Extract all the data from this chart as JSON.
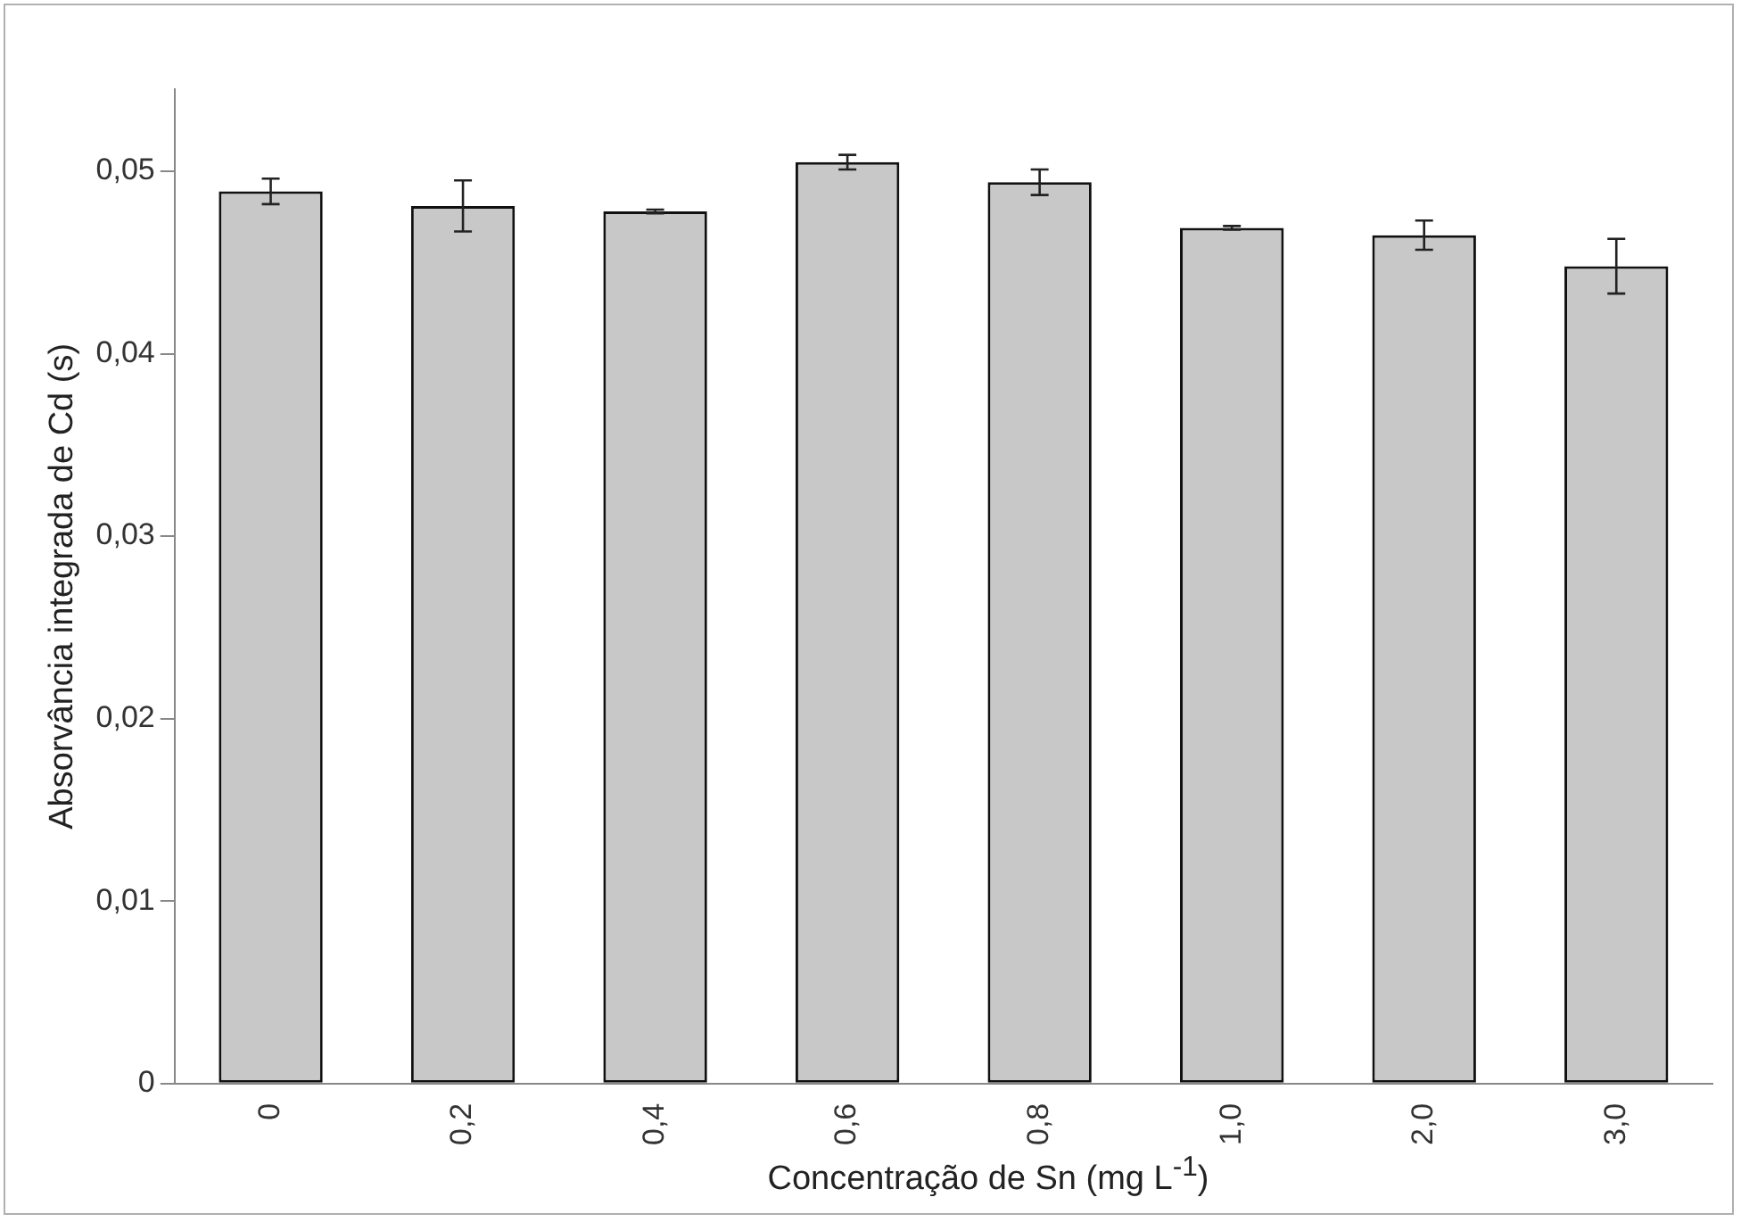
{
  "chart_data": {
    "type": "bar",
    "xlabel": "Concentração de Sn (mg L$^{-1}$)",
    "ylabel": "Absorvância integrada de Cd (s)",
    "categories": [
      "0",
      "0,2",
      "0,4",
      "0,6",
      "0,8",
      "1,0",
      "2,0",
      "3,0"
    ],
    "values": [
      0.0489,
      0.0481,
      0.0478,
      0.0505,
      0.0494,
      0.0469,
      0.0465,
      0.0448
    ],
    "errors": [
      0.0007,
      0.0014,
      0.0001,
      0.0004,
      0.0007,
      0.0001,
      0.0008,
      0.0015
    ],
    "color": "#c8c8c8",
    "ylim": [
      0,
      0.0545
    ],
    "yticks": [
      {
        "value": 0,
        "label": "0"
      },
      {
        "value": 0.01,
        "label": "0,01"
      },
      {
        "value": 0.02,
        "label": "0,02"
      },
      {
        "value": 0.03,
        "label": "0,03"
      },
      {
        "value": 0.04,
        "label": "0,04"
      },
      {
        "value": 0.05,
        "label": "0,05"
      }
    ],
    "grid": false,
    "legend": false
  }
}
